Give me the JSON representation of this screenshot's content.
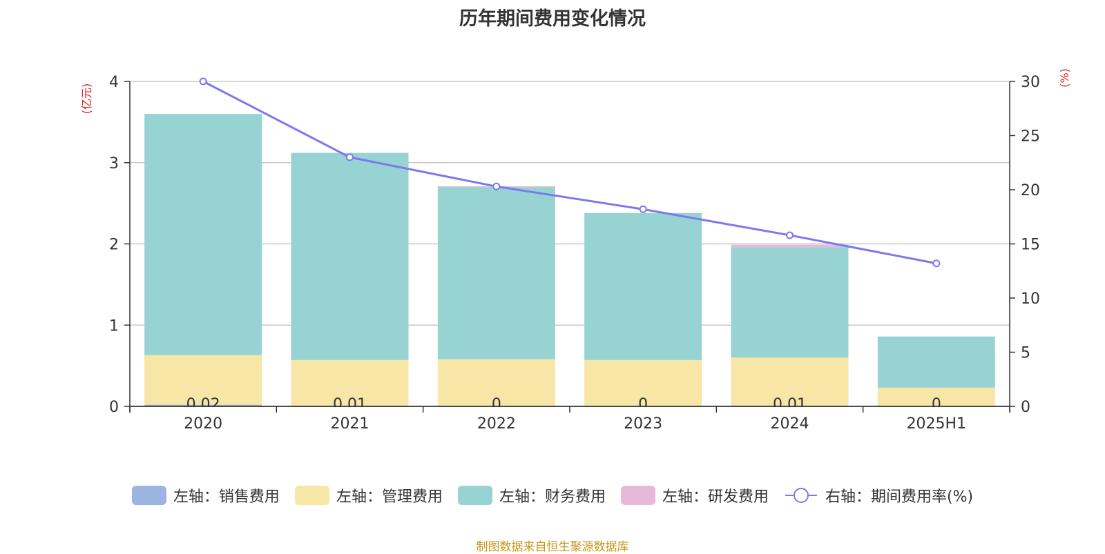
{
  "title": "历年期间费用变化情况",
  "source": "制图数据来自恒生聚源数据库",
  "chart_data": {
    "type": "bar",
    "stacked": true,
    "categories": [
      "2020",
      "2021",
      "2022",
      "2023",
      "2024",
      "2025H1"
    ],
    "left_axis": {
      "unit": "(亿元)",
      "ylim": [
        0,
        4
      ],
      "ticks": [
        "0",
        "1",
        "2",
        "3",
        "4"
      ]
    },
    "right_axis": {
      "unit": "(%)",
      "ylim": [
        0,
        30
      ],
      "ticks": [
        "0",
        "5",
        "10",
        "15",
        "20",
        "25",
        "30"
      ]
    },
    "series": [
      {
        "name": "左轴：销售费用",
        "type": "bar",
        "axis": "left",
        "color": "#9bb5e0",
        "values": [
          0.02,
          0.01,
          0,
          0,
          0.01,
          0
        ],
        "labels": [
          "0.02",
          "0.01",
          "0",
          "0",
          "0.01",
          "0"
        ]
      },
      {
        "name": "左轴：管理费用",
        "type": "bar",
        "axis": "left",
        "color": "#f7e6a6",
        "values": [
          0.61,
          0.56,
          0.58,
          0.57,
          0.59,
          0.23
        ]
      },
      {
        "name": "左轴：财务费用",
        "type": "bar",
        "axis": "left",
        "color": "#97d3d3",
        "values": [
          2.97,
          2.55,
          2.12,
          1.81,
          1.36,
          0.63
        ]
      },
      {
        "name": "左轴：研发费用",
        "type": "bar",
        "axis": "left",
        "color": "#e8b8db",
        "values": [
          0,
          0,
          0.01,
          0,
          0.03,
          0
        ]
      },
      {
        "name": "右轴：期间费用率(%)",
        "type": "line",
        "axis": "right",
        "color": "#7b79ee",
        "values": [
          30.0,
          23.0,
          20.3,
          18.2,
          15.8,
          13.2
        ]
      }
    ],
    "grid": true,
    "legend_position": "bottom"
  }
}
